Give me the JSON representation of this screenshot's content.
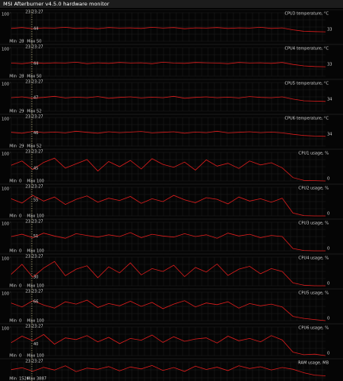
{
  "window": {
    "title": "MSI Afterburner v4.5.0 hardware monitor"
  },
  "labels": {
    "min": "Min",
    "max": "Max",
    "cursor_time": "23:23:27"
  },
  "chart_data": [
    {
      "type": "line",
      "title": "CPU3 temperature, °C",
      "ylim": [
        0,
        100
      ],
      "yticks": [
        100
      ],
      "min": 28,
      "max": 50,
      "cursor_value": 44,
      "current": 33,
      "color": "#d81c1c",
      "values": [
        45,
        48,
        44,
        47,
        46,
        49,
        45,
        47,
        44,
        48,
        46,
        47,
        45,
        49,
        46,
        48,
        44,
        47,
        46,
        48,
        45,
        47,
        46,
        49,
        45,
        47,
        40,
        35,
        34,
        33
      ]
    },
    {
      "type": "line",
      "title": "CPU4 temperature, °C",
      "ylim": [
        0,
        100
      ],
      "yticks": [
        100
      ],
      "min": 28,
      "max": 50,
      "cursor_value": 44,
      "current": 33,
      "color": "#d81c1c",
      "values": [
        46,
        44,
        48,
        45,
        47,
        46,
        49,
        44,
        47,
        45,
        48,
        46,
        47,
        44,
        49,
        46,
        45,
        48,
        47,
        46,
        44,
        48,
        46,
        47,
        45,
        48,
        41,
        36,
        34,
        33
      ]
    },
    {
      "type": "line",
      "title": "CPU5 temperature, °C",
      "ylim": [
        0,
        100
      ],
      "yticks": [
        100
      ],
      "min": 29,
      "max": 52,
      "cursor_value": 47,
      "current": 34,
      "color": "#d81c1c",
      "values": [
        47,
        50,
        45,
        48,
        52,
        46,
        49,
        47,
        51,
        45,
        48,
        50,
        46,
        49,
        47,
        52,
        45,
        48,
        50,
        47,
        49,
        46,
        51,
        48,
        47,
        50,
        42,
        36,
        35,
        34
      ]
    },
    {
      "type": "line",
      "title": "CPU6 temperature, °C",
      "ylim": [
        0,
        100
      ],
      "yticks": [
        100
      ],
      "min": 29,
      "max": 52,
      "cursor_value": 46,
      "current": 34,
      "color": "#d81c1c",
      "values": [
        48,
        45,
        51,
        47,
        49,
        46,
        52,
        48,
        45,
        50,
        47,
        49,
        51,
        46,
        48,
        50,
        45,
        49,
        47,
        52,
        46,
        48,
        50,
        47,
        49,
        46,
        41,
        37,
        35,
        34
      ]
    },
    {
      "type": "line",
      "title": "CPU1 usage, %",
      "ylim": [
        0,
        100
      ],
      "yticks": [
        100
      ],
      "min": 0,
      "max": 100,
      "cursor_value": 45,
      "current": 0,
      "color": "#d81c1c",
      "values": [
        55,
        70,
        40,
        65,
        80,
        45,
        60,
        75,
        35,
        68,
        50,
        72,
        42,
        78,
        58,
        48,
        66,
        38,
        74,
        52,
        62,
        44,
        70,
        56,
        64,
        46,
        12,
        2,
        1,
        0
      ]
    },
    {
      "type": "line",
      "title": "CPU2 usage, %",
      "ylim": [
        0,
        100
      ],
      "yticks": [
        100
      ],
      "min": 0,
      "max": 100,
      "cursor_value": 55,
      "current": 0,
      "color": "#d81c1c",
      "values": [
        60,
        45,
        72,
        52,
        66,
        40,
        58,
        70,
        48,
        62,
        54,
        68,
        44,
        60,
        50,
        72,
        56,
        46,
        64,
        58,
        42,
        66,
        52,
        60,
        48,
        62,
        10,
        1,
        0,
        0
      ]
    },
    {
      "type": "line",
      "title": "CPU3 usage, %",
      "ylim": [
        0,
        100
      ],
      "yticks": [
        100
      ],
      "min": 0,
      "max": 100,
      "cursor_value": 51,
      "current": 0,
      "color": "#d81c1c",
      "values": [
        50,
        58,
        46,
        62,
        52,
        44,
        60,
        54,
        48,
        56,
        50,
        64,
        46,
        58,
        52,
        48,
        60,
        50,
        56,
        44,
        62,
        52,
        58,
        46,
        54,
        50,
        8,
        1,
        0,
        0
      ]
    },
    {
      "type": "line",
      "title": "CPU4 usage, %",
      "ylim": [
        0,
        100
      ],
      "yticks": [
        100
      ],
      "min": 0,
      "max": 100,
      "cursor_value": 30,
      "current": 0,
      "color": "#d81c1c",
      "values": [
        40,
        75,
        30,
        62,
        85,
        35,
        58,
        70,
        28,
        66,
        45,
        80,
        38,
        60,
        50,
        72,
        32,
        64,
        48,
        76,
        36,
        58,
        68,
        42,
        60,
        50,
        10,
        2,
        0,
        0
      ]
    },
    {
      "type": "line",
      "title": "CPU5 usage, %",
      "ylim": [
        0,
        100
      ],
      "yticks": [
        100
      ],
      "min": 0,
      "max": 100,
      "cursor_value": 66,
      "current": 0,
      "color": "#d81c1c",
      "values": [
        62,
        48,
        70,
        55,
        44,
        66,
        58,
        72,
        46,
        60,
        52,
        68,
        50,
        64,
        42,
        58,
        70,
        48,
        62,
        56,
        66,
        44,
        60,
        52,
        58,
        48,
        15,
        8,
        4,
        0
      ]
    },
    {
      "type": "line",
      "title": "CPU6 usage, %",
      "ylim": [
        0,
        100
      ],
      "yticks": [
        100
      ],
      "min": 0,
      "max": 100,
      "cursor_value": 40,
      "current": 0,
      "color": "#d81c1c",
      "values": [
        45,
        68,
        52,
        74,
        40,
        62,
        56,
        70,
        48,
        64,
        42,
        60,
        54,
        72,
        46,
        66,
        50,
        58,
        62,
        44,
        68,
        52,
        60,
        48,
        70,
        55,
        12,
        3,
        5,
        0
      ]
    },
    {
      "type": "line",
      "title": "RAM usage, MB",
      "ylim": [
        0,
        4096
      ],
      "min": 1526,
      "max": 3887,
      "color": "#d81c1c",
      "values": [
        3100,
        3350,
        2900,
        3400,
        3050,
        3600,
        2850,
        3300,
        3150,
        3500,
        2950,
        3450,
        3200,
        3650,
        3000,
        3380,
        2880,
        3550,
        3120,
        3420,
        2980,
        3600,
        3250,
        3480,
        3060,
        3380,
        3150,
        2700,
        2400,
        2300
      ]
    }
  ]
}
